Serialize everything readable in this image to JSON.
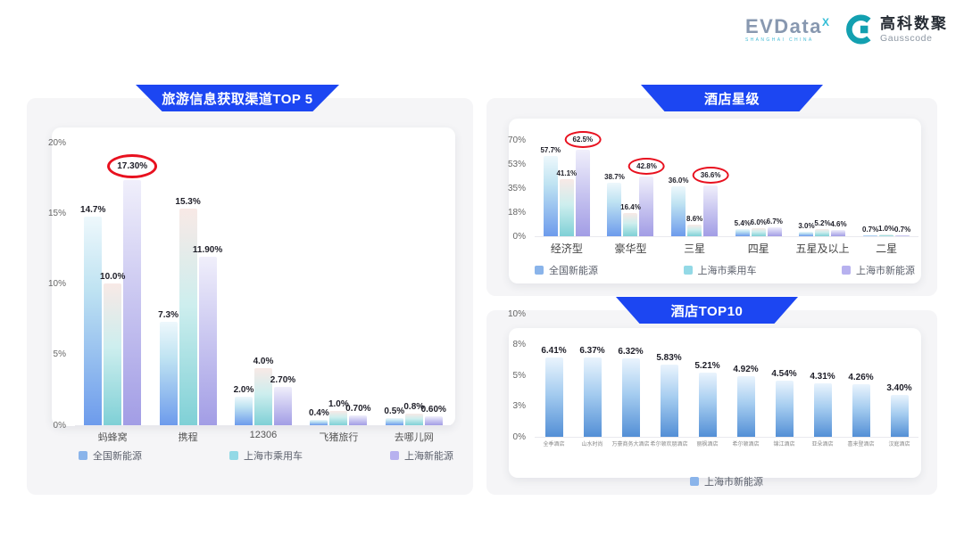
{
  "logo": {
    "evdata_text": "EVData",
    "evdata_sup": "X",
    "evdata_sub": "SHANGHAI CHINA",
    "gausscode_cn": "高科数聚",
    "gausscode_en": "Gausscode"
  },
  "colors": {
    "banner_blue": "#1c46f2",
    "series_blue": "#8ab4ea",
    "series_cyan": "#93d9e6",
    "series_purple": "#b7b1ef",
    "highlight_red": "#e8111f"
  },
  "chart_data": [
    {
      "type": "bar",
      "title": "旅游信息获取渠道TOP 5",
      "categories": [
        "蚂蜂窝",
        "携程",
        "12306",
        "飞猪旅行",
        "去哪儿网"
      ],
      "series": [
        {
          "name": "全国新能源",
          "values": [
            14.7,
            7.3,
            2.0,
            0.4,
            0.5
          ],
          "labels": [
            "14.7%",
            "7.3%",
            "2.0%",
            "0.4%",
            "0.5%"
          ],
          "circled": []
        },
        {
          "name": "上海市乘用车",
          "values": [
            10.0,
            15.3,
            4.0,
            1.0,
            0.8
          ],
          "labels": [
            "10.0%",
            "15.3%",
            "4.0%",
            "1.0%",
            "0.8%"
          ],
          "circled": []
        },
        {
          "name": "上海新能源",
          "values": [
            17.3,
            11.9,
            2.7,
            0.7,
            0.6
          ],
          "labels": [
            "17.30%",
            "11.90%",
            "2.70%",
            "0.70%",
            "0.60%"
          ],
          "circled": [
            0
          ]
        }
      ],
      "yticks": [
        "20%",
        "15%",
        "10%",
        "5%",
        "0%"
      ],
      "ylim": [
        0,
        20
      ],
      "xlabel": "",
      "ylabel": "",
      "grid": false,
      "legend_position": "bottom"
    },
    {
      "type": "bar",
      "title": "酒店星级",
      "categories": [
        "经济型",
        "豪华型",
        "三星",
        "四星",
        "五星及以上",
        "二星"
      ],
      "series": [
        {
          "name": "全国新能源",
          "values": [
            57.7,
            38.7,
            36.0,
            5.4,
            3.0,
            0.7
          ],
          "labels": [
            "57.7%",
            "38.7%",
            "36.0%",
            "5.4%",
            "3.0%",
            "0.7%"
          ],
          "circled": []
        },
        {
          "name": "上海市乘用车",
          "values": [
            41.1,
            16.4,
            8.6,
            6.0,
            5.2,
            1.0
          ],
          "labels": [
            "41.1%",
            "16.4%",
            "8.6%",
            "6.0%",
            "5.2%",
            "1.0%"
          ],
          "circled": []
        },
        {
          "name": "上海市新能源",
          "values": [
            62.5,
            42.8,
            36.6,
            6.7,
            4.6,
            0.7
          ],
          "labels": [
            "62.5%",
            "42.8%",
            "36.6%",
            "6.7%",
            "4.6%",
            "0.7%"
          ],
          "circled": [
            0,
            1,
            2
          ]
        }
      ],
      "yticks": [
        "70%",
        "53%",
        "35%",
        "18%",
        "0%"
      ],
      "ylim": [
        0,
        70
      ],
      "xlabel": "",
      "ylabel": "",
      "grid": false,
      "legend_position": "bottom"
    },
    {
      "type": "bar",
      "title": "酒店TOP10",
      "categories": [
        "全季酒店",
        "山水时尚",
        "万豪商务大酒店",
        "希尔顿欢朋酒店",
        "丽枫酒店",
        "希尔顿酒店",
        "锦江酒店",
        "亚朵酒店",
        "喜来登酒店",
        "汉庭酒店"
      ],
      "series": [
        {
          "name": "上海市新能源",
          "values": [
            6.41,
            6.37,
            6.32,
            5.83,
            5.21,
            4.92,
            4.54,
            4.31,
            4.26,
            3.4
          ],
          "labels": [
            "6.41%",
            "6.37%",
            "6.32%",
            "5.83%",
            "5.21%",
            "4.92%",
            "4.54%",
            "4.31%",
            "4.26%",
            "3.40%"
          ],
          "circled": []
        }
      ],
      "yticks": [
        "10%",
        "8%",
        "5%",
        "3%",
        "0%"
      ],
      "ylim": [
        0,
        10
      ],
      "xlabel": "",
      "ylabel": "",
      "grid": false,
      "legend_position": "bottom"
    }
  ]
}
